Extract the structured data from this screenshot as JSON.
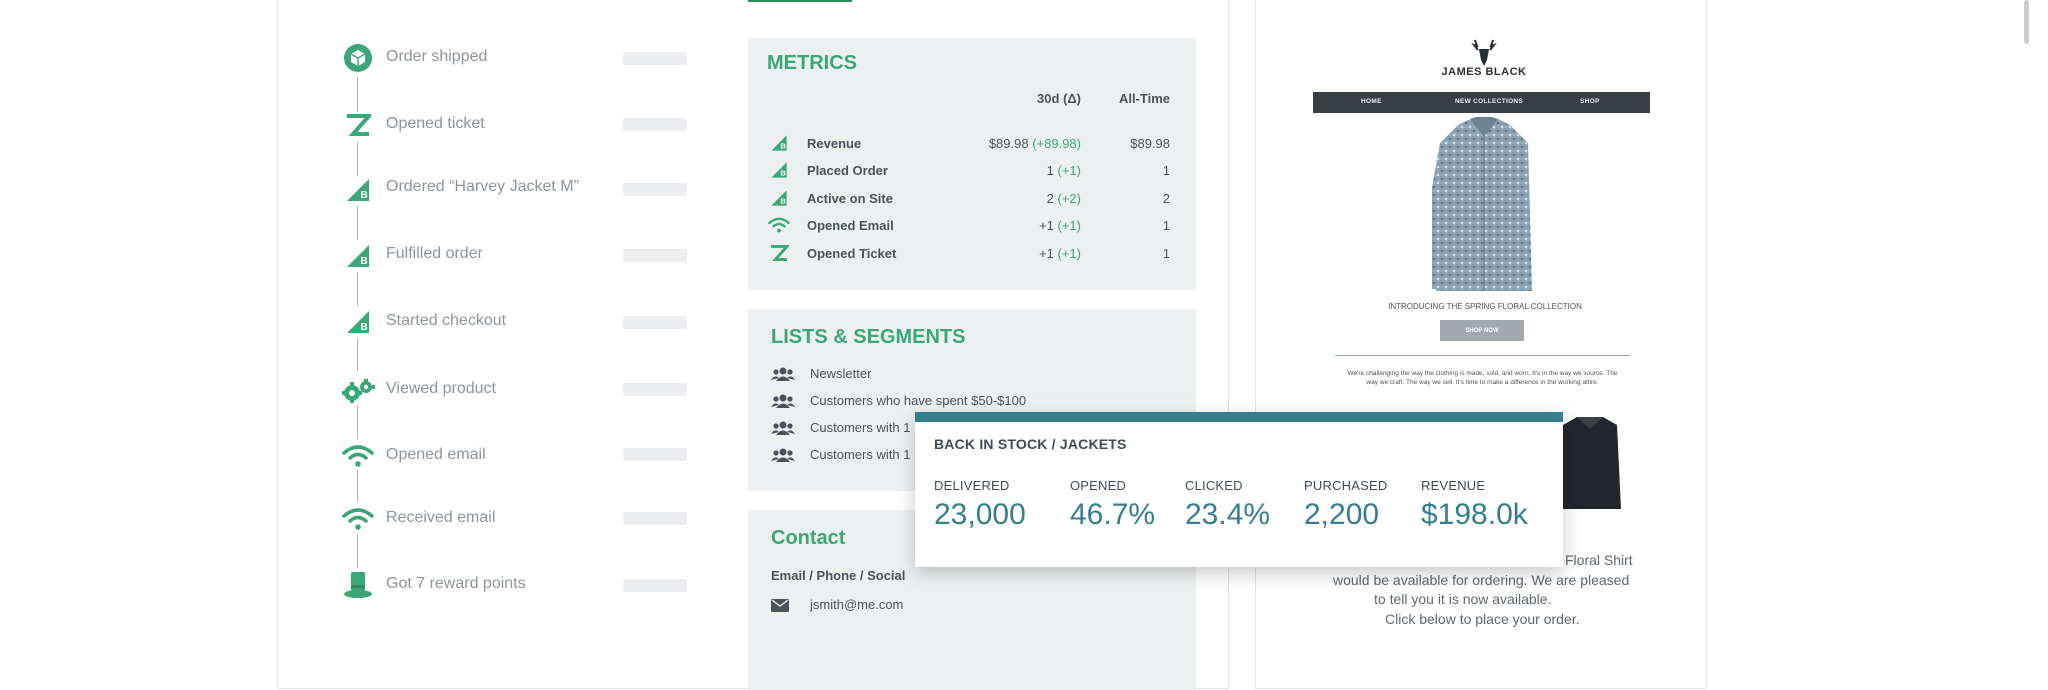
{
  "timeline": {
    "items": [
      {
        "label": "Order shipped",
        "icon": "package-icon"
      },
      {
        "label": "Opened ticket",
        "icon": "zendesk-icon"
      },
      {
        "label": "Ordered “Harvey Jacket M”",
        "icon": "bigcommerce-icon"
      },
      {
        "label": "Fulfilled order",
        "icon": "bigcommerce-icon"
      },
      {
        "label": "Started checkout",
        "icon": "bigcommerce-icon"
      },
      {
        "label": "Viewed product",
        "icon": "gears-icon"
      },
      {
        "label": "Opened email",
        "icon": "wifi-icon"
      },
      {
        "label": "Received email",
        "icon": "wifi-icon"
      },
      {
        "label": "Got 7 reward points",
        "icon": "top-hat-icon"
      }
    ]
  },
  "metrics": {
    "title": "METRICS",
    "col_30d": "30d (Δ)",
    "col_all": "All-Time",
    "rows": [
      {
        "label": "Revenue",
        "value": "$89.98",
        "delta": "(+89.98)",
        "all": "$89.98",
        "icon": "bigcommerce-icon"
      },
      {
        "label": "Placed Order",
        "value": "1",
        "delta": "(+1)",
        "all": "1",
        "icon": "bigcommerce-icon"
      },
      {
        "label": "Active on Site",
        "value": "2",
        "delta": "(+2)",
        "all": "2",
        "icon": "bigcommerce-icon"
      },
      {
        "label": "Opened Email",
        "value": "+1",
        "delta": "(+1)",
        "all": "1",
        "icon": "wifi-icon"
      },
      {
        "label": "Opened Ticket",
        "value": "+1",
        "delta": "(+1)",
        "all": "1",
        "icon": "zendesk-icon"
      }
    ]
  },
  "lists": {
    "title": "LISTS & SEGMENTS",
    "items": [
      "Newsletter",
      "Customers who have spent $50-$100",
      "Customers with 1",
      "Customers with 1"
    ]
  },
  "contact": {
    "title": "Contact",
    "subtitle": "Email / Phone / Social",
    "email": "jsmith@me.com"
  },
  "email_preview": {
    "brand": "JAMES BLACK",
    "nav": [
      "HOME",
      "NEW COLLECTIONS",
      "SHOP"
    ],
    "caption": "INTRODUCING THE SPRING FLORAL COLLECTION",
    "shop_button": "SHOP NOW",
    "paragraph_1": "We're challenging the way the clothing is made, sold, and worn. It's in the way we source. The",
    "paragraph_2": "way we craft. The way we sell. It's time to make a difference in the working attire.",
    "body_lines": [
      "Floral Shirt",
      "would be available for ordering. We are pleased",
      "to tell you it is now available.",
      "Click below to place your order."
    ]
  },
  "campaign_popup": {
    "title": "BACK IN STOCK / JACKETS",
    "stats": [
      {
        "label": "DELIVERED",
        "value": "23,000"
      },
      {
        "label": "OPENED",
        "value": "46.7%"
      },
      {
        "label": "CLICKED",
        "value": "23.4%"
      },
      {
        "label": "PURCHASED",
        "value": "2,200"
      },
      {
        "label": "REVENUE",
        "value": "$198.0k"
      }
    ]
  },
  "colors": {
    "brand_green": "#3ba776",
    "teal": "#357f8c",
    "text": "#4a525a"
  }
}
